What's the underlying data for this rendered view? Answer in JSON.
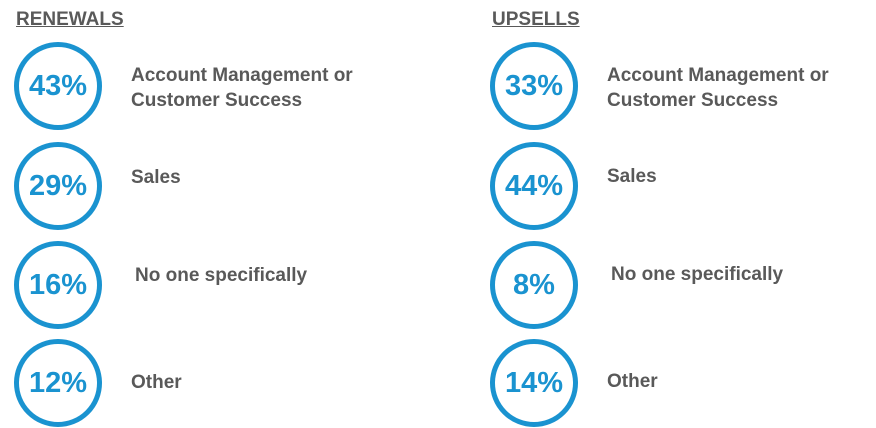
{
  "sections": [
    {
      "title": "RENEWALS",
      "items": [
        {
          "value": "43%",
          "label": "Account Management or Customer Success"
        },
        {
          "value": "29%",
          "label": "Sales"
        },
        {
          "value": "16%",
          "label": "No one specifically"
        },
        {
          "value": "12%",
          "label": "Other"
        }
      ]
    },
    {
      "title": "UPSELLS",
      "items": [
        {
          "value": "33%",
          "label": "Account Management or Customer Success"
        },
        {
          "value": "44%",
          "label": "Sales"
        },
        {
          "value": "8%",
          "label": "No one specifically"
        },
        {
          "value": "14%",
          "label": "Other"
        }
      ]
    }
  ]
}
